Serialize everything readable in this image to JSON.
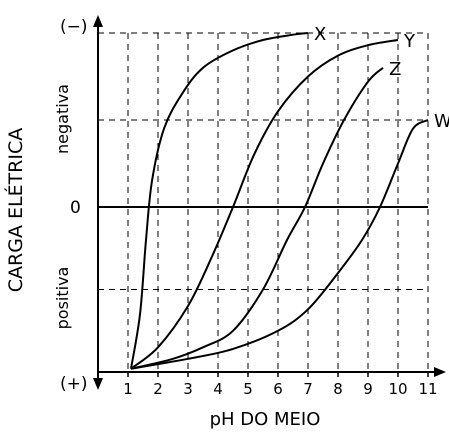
{
  "chart_data": {
    "type": "line",
    "xlabel": "pH DO MEIO",
    "ylabel": "CARGA ELÉTRICA",
    "region_labels": {
      "upper": "negativa",
      "lower": "positiva"
    },
    "y_end_labels": {
      "top": "(−)",
      "zero": "0",
      "bottom": "(+)"
    },
    "x_ticks": [
      "1",
      "2",
      "3",
      "4",
      "5",
      "6",
      "7",
      "8",
      "9",
      "10",
      "11"
    ],
    "xlim": [
      0,
      11
    ],
    "ylim": [
      -1,
      1
    ],
    "grid": true,
    "series": [
      {
        "name": "X",
        "x": [
          1.1,
          1.4,
          1.6,
          1.8,
          2.2,
          2.8,
          3.5,
          4.5,
          5.5,
          6.5,
          7.0
        ],
        "y": [
          -0.98,
          -0.65,
          -0.2,
          0.15,
          0.45,
          0.65,
          0.8,
          0.9,
          0.96,
          0.99,
          1.0
        ]
      },
      {
        "name": "Y",
        "x": [
          1.1,
          2.0,
          3.0,
          3.8,
          4.5,
          5.2,
          6.0,
          7.0,
          8.0,
          9.0,
          10.0
        ],
        "y": [
          -0.98,
          -0.85,
          -0.6,
          -0.3,
          0.0,
          0.3,
          0.55,
          0.75,
          0.87,
          0.93,
          0.96
        ]
      },
      {
        "name": "Z",
        "x": [
          1.1,
          2.5,
          3.5,
          4.5,
          5.5,
          6.3,
          6.9,
          7.5,
          8.2,
          9.0,
          9.5
        ],
        "y": [
          -0.98,
          -0.92,
          -0.85,
          -0.75,
          -0.5,
          -0.2,
          0.0,
          0.25,
          0.5,
          0.72,
          0.8
        ]
      },
      {
        "name": "W",
        "x": [
          1.1,
          3.0,
          4.5,
          6.0,
          7.0,
          8.0,
          8.8,
          9.4,
          10.0,
          10.5,
          11.0
        ],
        "y": [
          -0.98,
          -0.92,
          -0.86,
          -0.75,
          -0.62,
          -0.4,
          -0.2,
          0.0,
          0.25,
          0.45,
          0.5
        ]
      }
    ]
  }
}
